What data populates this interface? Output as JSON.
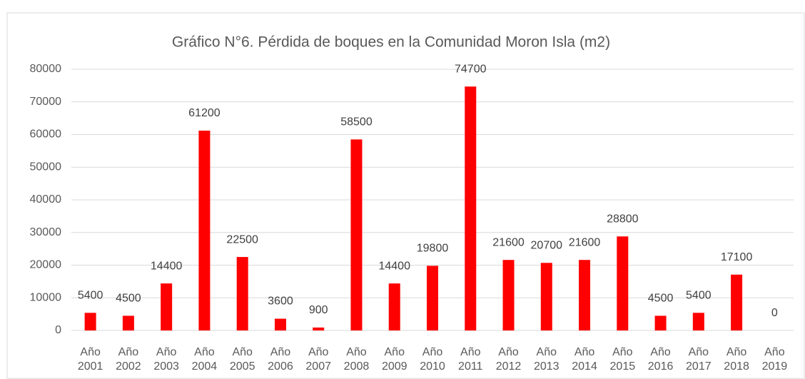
{
  "chart_data": {
    "type": "bar",
    "title": "Gráfico N°6. Pérdida de boques en la Comunidad Moron Isla (m2)",
    "categories": [
      "Año 2001",
      "Año 2002",
      "Año 2003",
      "Año 2004",
      "Año 2005",
      "Año 2006",
      "Año 2007",
      "Año 2008",
      "Año 2009",
      "Año 2010",
      "Año 2011",
      "Año 2012",
      "Año 2013",
      "Año 2014",
      "Año 2015",
      "Año 2016",
      "Año 2017",
      "Año 2018",
      "Año 2019"
    ],
    "values": [
      5400,
      4500,
      14400,
      61200,
      22500,
      3600,
      900,
      58500,
      14400,
      19800,
      74700,
      21600,
      20700,
      21600,
      28800,
      4500,
      5400,
      17100,
      0
    ],
    "color": "#ff0000",
    "ylim": [
      0,
      80000
    ],
    "yticks": [
      0,
      10000,
      20000,
      30000,
      40000,
      50000,
      60000,
      70000,
      80000
    ],
    "grid": true
  }
}
